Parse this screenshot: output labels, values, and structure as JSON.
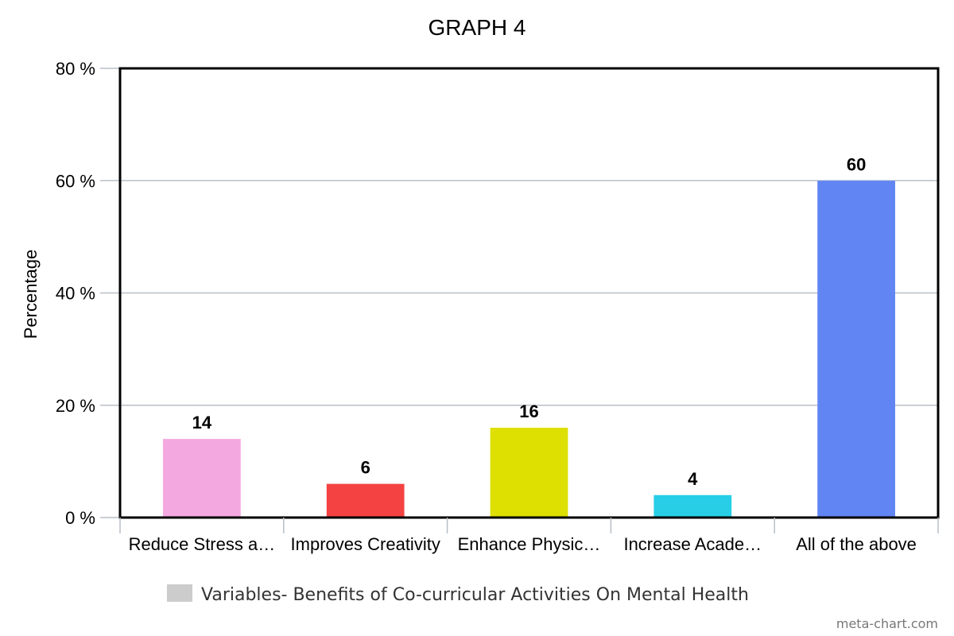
{
  "chart_data": {
    "type": "bar",
    "title": "GRAPH 4",
    "ylabel": "Percentage",
    "xlabel": "",
    "categories": [
      "Reduce Stress a…",
      "Improves Creativity",
      "Enhance Physic…",
      "Increase Acade…",
      "All of the above"
    ],
    "values": [
      14,
      6,
      16,
      4,
      60
    ],
    "data_labels": [
      "14",
      "6",
      "16",
      "4",
      "60"
    ],
    "colors": [
      "#f4a8e0",
      "#f44242",
      "#dde000",
      "#27cee6",
      "#6185f3"
    ],
    "ylim": [
      0,
      80
    ],
    "yticks": [
      0,
      20,
      40,
      60,
      80
    ],
    "ytick_labels": [
      "0 %",
      "20 %",
      "40 %",
      "60 %",
      "80 %"
    ],
    "grid": true,
    "legend": {
      "position": "bottom",
      "label": "Variables- Benefits of Co-curricular Activities On Mental Health",
      "swatch_color": "#cccccc"
    }
  },
  "credit": "meta-chart.com"
}
